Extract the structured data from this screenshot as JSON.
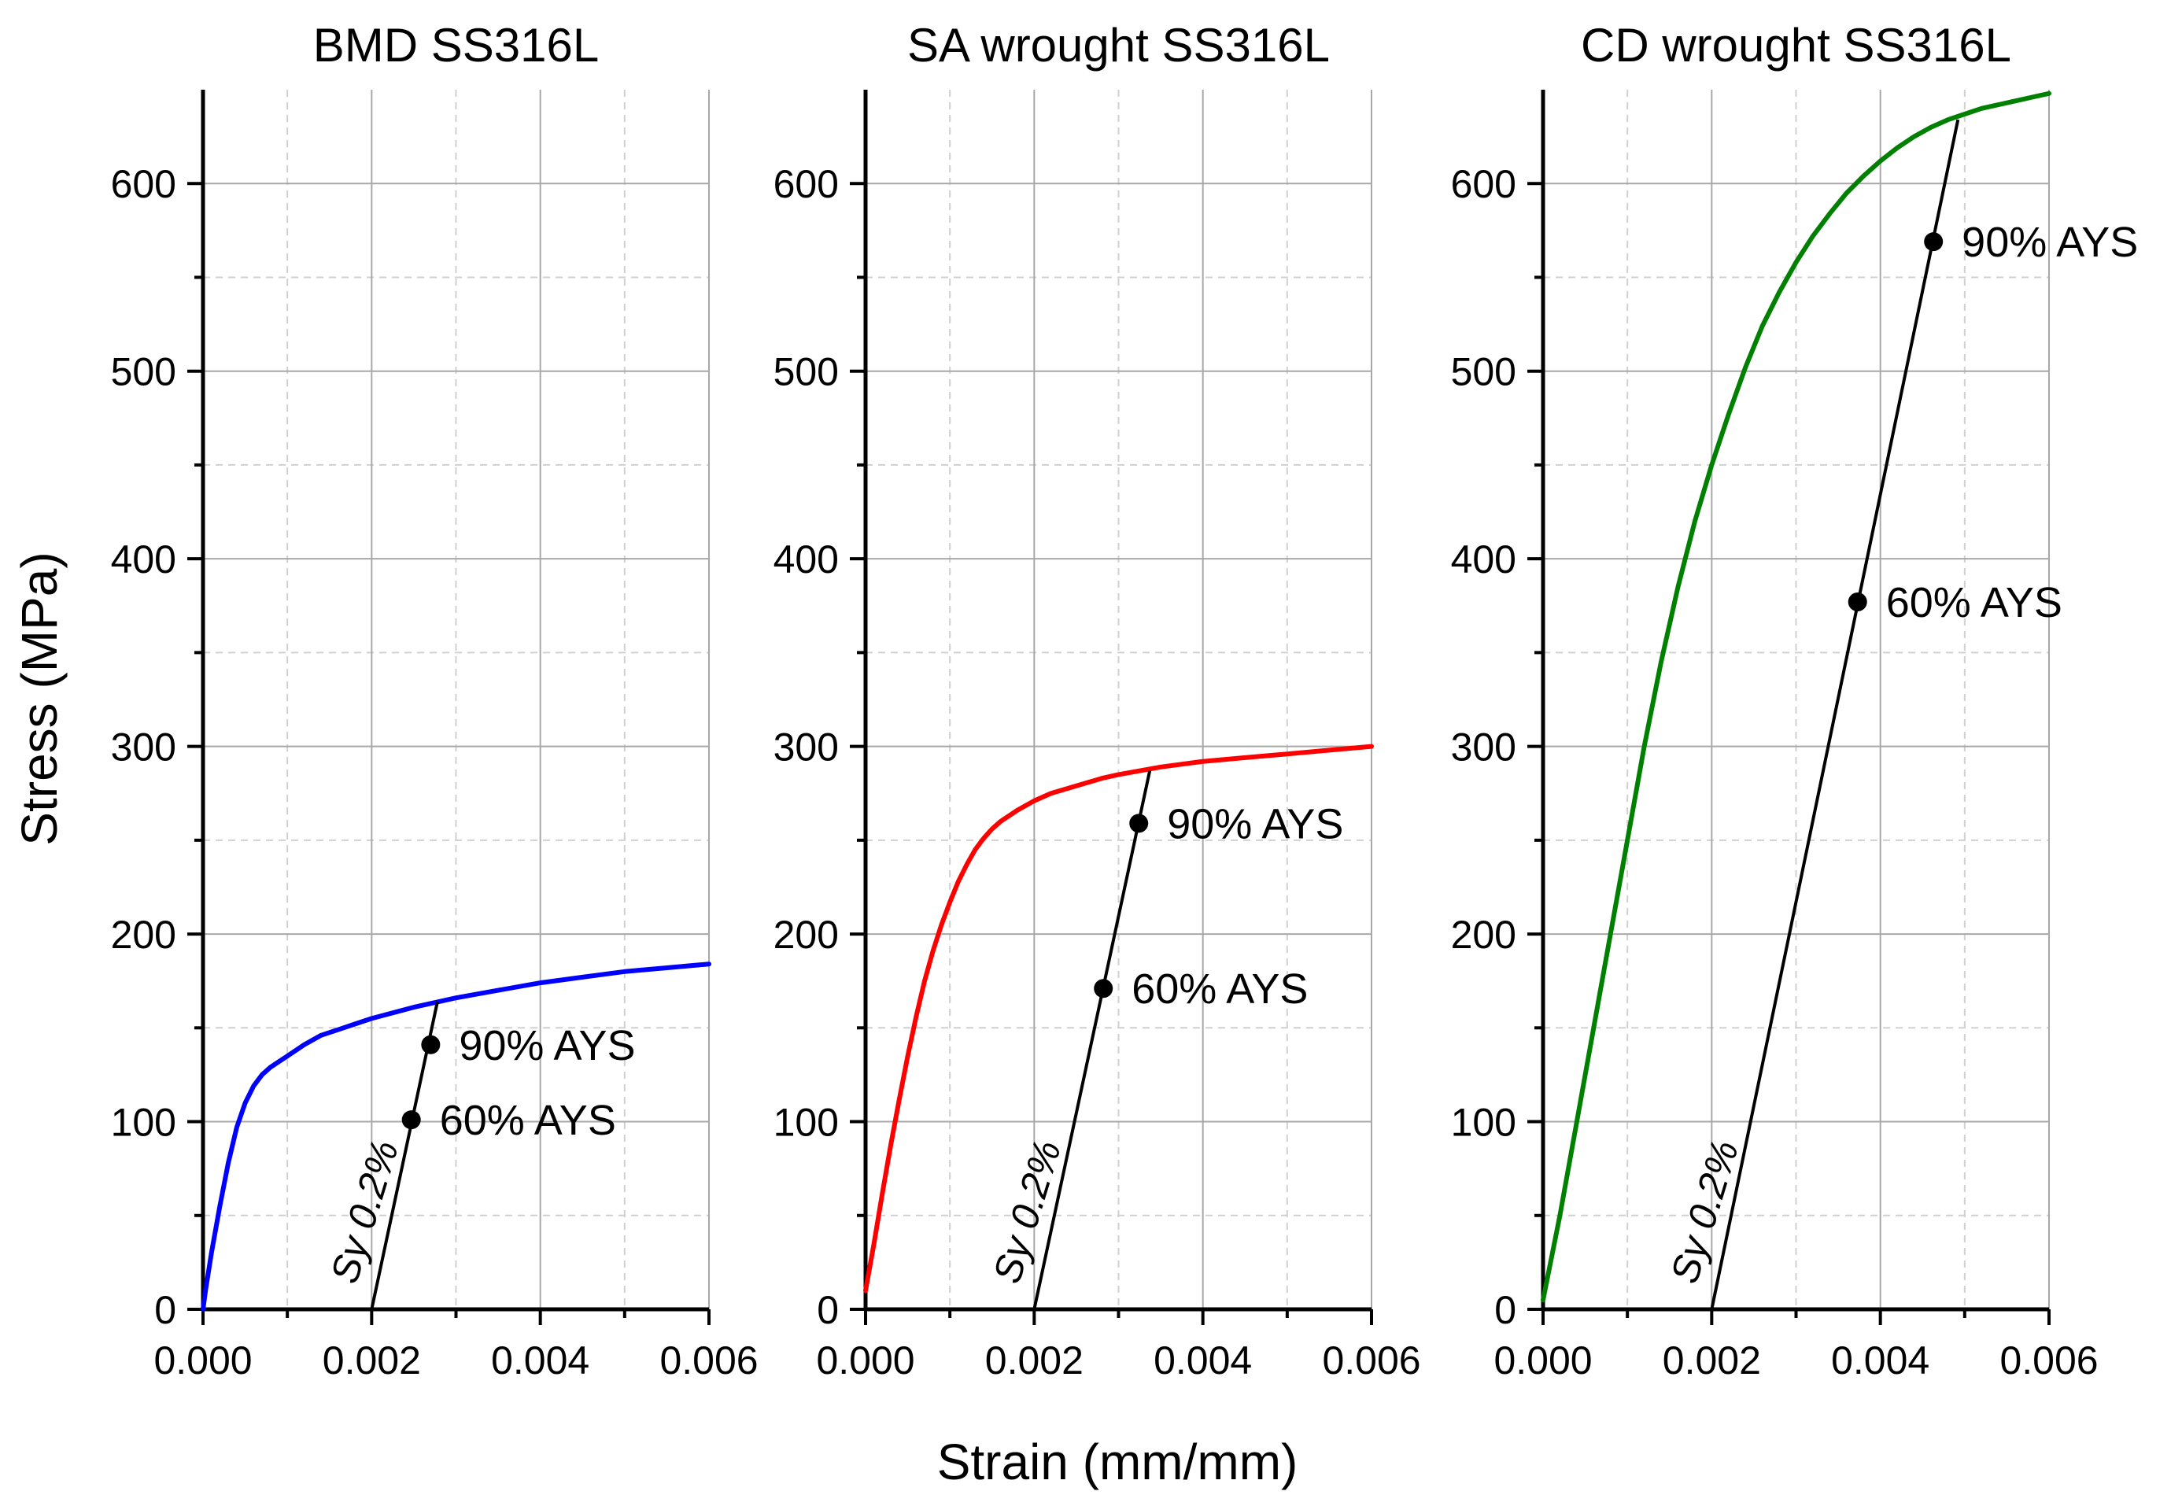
{
  "figure": {
    "xlabel": "Strain (mm/mm)",
    "ylabel": "Stress (MPa)"
  },
  "chart_data": [
    {
      "type": "line",
      "title": "BMD SS316L",
      "xlim": [
        0.0,
        0.006
      ],
      "ylim": [
        0,
        650
      ],
      "xticks": [
        0.0,
        0.002,
        0.004,
        0.006
      ],
      "xtick_labels": [
        "0.000",
        "0.002",
        "0.004",
        "0.006"
      ],
      "yticks": [
        0,
        100,
        200,
        300,
        400,
        500,
        600
      ],
      "ytick_labels": [
        "0",
        "100",
        "200",
        "300",
        "400",
        "500",
        "600"
      ],
      "grid": true,
      "color": "#0000ff",
      "curve": {
        "name": "BMD SS316L stress-strain",
        "x": [
          0.0,
          3e-05,
          0.0001,
          0.0002,
          0.0003,
          0.0004,
          0.0005,
          0.0006,
          0.0007,
          0.0008,
          0.0009,
          0.001,
          0.0012,
          0.0014,
          0.0016,
          0.0018,
          0.002,
          0.0025,
          0.003,
          0.0035,
          0.004,
          0.0045,
          0.005,
          0.0055,
          0.006
        ],
        "y": [
          0,
          10,
          30,
          55,
          78,
          97,
          110,
          119,
          125,
          129,
          132,
          135,
          141,
          146,
          149,
          152,
          155,
          161,
          166,
          170,
          174,
          177,
          180,
          182,
          184
        ]
      },
      "offset_line": {
        "label": "Sy 0.2%",
        "x": [
          0.002,
          0.00278
        ],
        "y": [
          0,
          164
        ]
      },
      "points": [
        {
          "label": "90% AYS",
          "x": 0.0027,
          "y": 141
        },
        {
          "label": "60% AYS",
          "x": 0.00247,
          "y": 101
        }
      ]
    },
    {
      "type": "line",
      "title": "SA wrought SS316L",
      "xlim": [
        0.0,
        0.006
      ],
      "ylim": [
        0,
        650
      ],
      "xticks": [
        0.0,
        0.002,
        0.004,
        0.006
      ],
      "xtick_labels": [
        "0.000",
        "0.002",
        "0.004",
        "0.006"
      ],
      "yticks": [
        0,
        100,
        200,
        300,
        400,
        500,
        600
      ],
      "ytick_labels": [
        "0",
        "100",
        "200",
        "300",
        "400",
        "500",
        "600"
      ],
      "grid": true,
      "color": "#ff0000",
      "curve": {
        "name": "SA wrought SS316L stress-strain",
        "x": [
          0.0,
          0.0001,
          0.0002,
          0.0003,
          0.0004,
          0.0005,
          0.0006,
          0.0007,
          0.0008,
          0.0009,
          0.001,
          0.0011,
          0.0012,
          0.0013,
          0.0014,
          0.0015,
          0.0016,
          0.0018,
          0.002,
          0.0022,
          0.0025,
          0.0028,
          0.003,
          0.0035,
          0.004,
          0.0045,
          0.005,
          0.0055,
          0.006
        ],
        "y": [
          10,
          35,
          62,
          88,
          112,
          135,
          156,
          175,
          191,
          205,
          217,
          228,
          237,
          245,
          251,
          256,
          260,
          266,
          271,
          275,
          279,
          283,
          285,
          289,
          292,
          294,
          296,
          298,
          300
        ]
      },
      "offset_line": {
        "label": "Sy 0.2%",
        "x": [
          0.002,
          0.00337
        ],
        "y": [
          0,
          287
        ]
      },
      "points": [
        {
          "label": "90% AYS",
          "x": 0.00324,
          "y": 259
        },
        {
          "label": "60% AYS",
          "x": 0.00282,
          "y": 171
        }
      ]
    },
    {
      "type": "line",
      "title": "CD wrought SS316L",
      "xlim": [
        0.0,
        0.006
      ],
      "ylim": [
        0,
        650
      ],
      "xticks": [
        0.0,
        0.002,
        0.004,
        0.006
      ],
      "xtick_labels": [
        "0.000",
        "0.002",
        "0.004",
        "0.006"
      ],
      "yticks": [
        0,
        100,
        200,
        300,
        400,
        500,
        600
      ],
      "ytick_labels": [
        "0",
        "100",
        "200",
        "300",
        "400",
        "500",
        "600"
      ],
      "grid": true,
      "color": "#008000",
      "curve": {
        "name": "CD wrought SS316L stress-strain",
        "x": [
          0.0,
          0.0002,
          0.0004,
          0.0006,
          0.0008,
          0.001,
          0.0012,
          0.0014,
          0.0016,
          0.0018,
          0.002,
          0.0022,
          0.0024,
          0.0026,
          0.0028,
          0.003,
          0.0032,
          0.0034,
          0.0036,
          0.0038,
          0.004,
          0.0042,
          0.0044,
          0.0046,
          0.0048,
          0.005,
          0.0052,
          0.0054,
          0.0056,
          0.0058,
          0.006
        ],
        "y": [
          5,
          50,
          100,
          150,
          200,
          250,
          300,
          345,
          385,
          420,
          450,
          477,
          502,
          524,
          542,
          558,
          572,
          584,
          595,
          604,
          612,
          619,
          625,
          630,
          634,
          637,
          640,
          642,
          644,
          646,
          648
        ]
      },
      "offset_line": {
        "label": "Sy 0.2%",
        "x": [
          0.002,
          0.00492
        ],
        "y": [
          0,
          634
        ]
      },
      "points": [
        {
          "label": "90% AYS",
          "x": 0.00463,
          "y": 569
        },
        {
          "label": "60% AYS",
          "x": 0.00373,
          "y": 377
        }
      ]
    }
  ]
}
